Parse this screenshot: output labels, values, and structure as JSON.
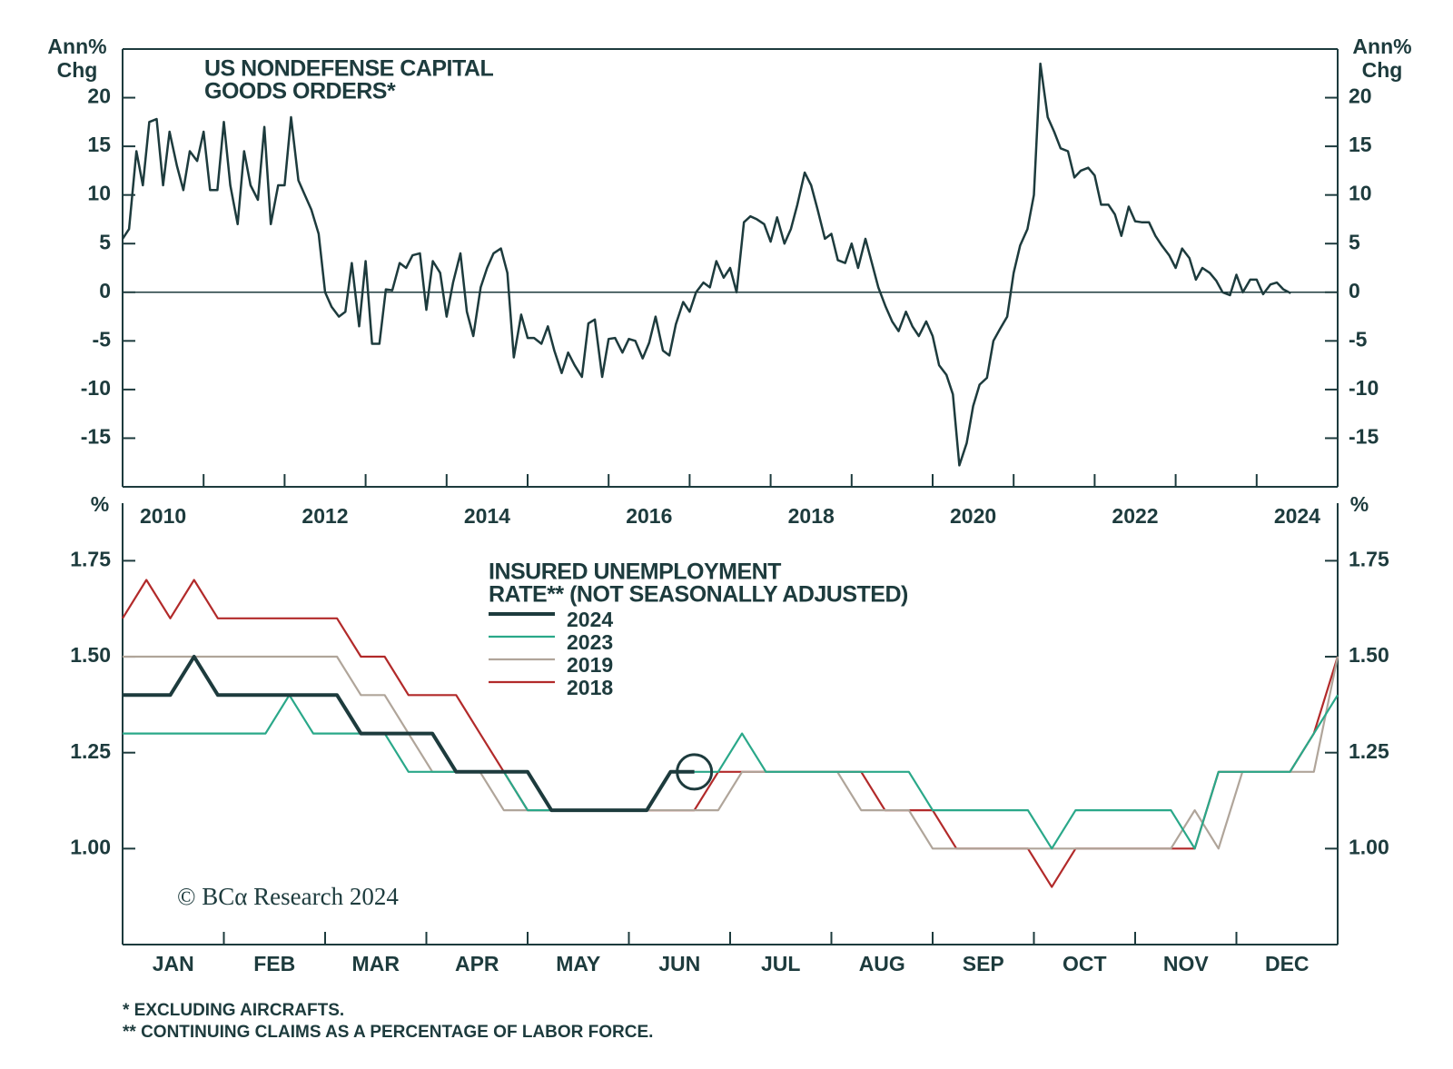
{
  "chart_data": [
    {
      "type": "line",
      "title": [
        "US NONDEFENSE CAPITAL",
        "GOODS ORDERS*"
      ],
      "ylabel": [
        "Ann%",
        "Chg"
      ],
      "xlim": [
        2010,
        2025
      ],
      "xticks": [
        2010,
        2012,
        2014,
        2016,
        2018,
        2020,
        2022,
        2024
      ],
      "xminorticks": [
        2011,
        2012,
        2013,
        2014,
        2015,
        2016,
        2017,
        2018,
        2019,
        2020,
        2021,
        2022,
        2023,
        2024
      ],
      "ylim": [
        -20,
        25
      ],
      "yticks": [
        -15,
        -10,
        -5,
        0,
        5,
        10,
        15,
        20
      ],
      "zero_line": true,
      "x": [
        2010,
        2010.08,
        2010.17,
        2010.25,
        2010.33,
        2010.42,
        2010.5,
        2010.58,
        2010.67,
        2010.75,
        2010.83,
        2010.92,
        2011,
        2011.08,
        2011.17,
        2011.25,
        2011.33,
        2011.42,
        2011.5,
        2011.58,
        2011.67,
        2011.75,
        2011.83,
        2011.92,
        2012,
        2012.08,
        2012.17,
        2012.25,
        2012.33,
        2012.42,
        2012.5,
        2012.58,
        2012.67,
        2012.75,
        2012.83,
        2012.92,
        2013,
        2013.08,
        2013.17,
        2013.25,
        2013.33,
        2013.42,
        2013.5,
        2013.58,
        2013.67,
        2013.75,
        2013.83,
        2013.92,
        2014,
        2014.08,
        2014.17,
        2014.25,
        2014.33,
        2014.42,
        2014.5,
        2014.58,
        2014.67,
        2014.75,
        2014.83,
        2014.92,
        2015,
        2015.08,
        2015.17,
        2015.25,
        2015.33,
        2015.42,
        2015.5,
        2015.58,
        2015.67,
        2015.75,
        2015.83,
        2015.92,
        2016,
        2016.08,
        2016.17,
        2016.25,
        2016.33,
        2016.42,
        2016.5,
        2016.58,
        2016.67,
        2016.75,
        2016.83,
        2016.92,
        2017,
        2017.08,
        2017.17,
        2017.25,
        2017.33,
        2017.42,
        2017.5,
        2017.58,
        2017.67,
        2017.75,
        2017.83,
        2017.92,
        2018,
        2018.08,
        2018.17,
        2018.25,
        2018.33,
        2018.42,
        2018.5,
        2018.58,
        2018.67,
        2018.75,
        2018.83,
        2018.92,
        2019,
        2019.08,
        2019.17,
        2019.25,
        2019.33,
        2019.42,
        2019.5,
        2019.58,
        2019.67,
        2019.75,
        2019.83,
        2019.92,
        2020,
        2020.08,
        2020.17,
        2020.25,
        2020.33,
        2020.42,
        2020.5,
        2020.58,
        2020.67,
        2020.75,
        2020.83,
        2020.92,
        2021,
        2021.08,
        2021.17,
        2021.25,
        2021.33,
        2021.42,
        2021.5,
        2021.58,
        2021.67,
        2021.75,
        2021.83,
        2021.92,
        2022,
        2022.08,
        2022.17,
        2022.25,
        2022.33,
        2022.42,
        2022.5,
        2022.58,
        2022.67,
        2022.75,
        2022.83,
        2022.92,
        2023,
        2023.08,
        2023.17,
        2023.25,
        2023.33,
        2023.42,
        2023.5,
        2023.58,
        2023.67,
        2023.75,
        2023.83,
        2023.92,
        2024,
        2024.08,
        2024.17,
        2024.25,
        2024.33,
        2024.42
      ],
      "series": [
        {
          "color": "#1d3b3d",
          "width": 2.5,
          "values": [
            5.5,
            6.5,
            14.5,
            11,
            17.5,
            17.8,
            11,
            16.5,
            13,
            10.5,
            14.5,
            13.5,
            16.5,
            10.5,
            10.5,
            17.5,
            11,
            7,
            14.5,
            11,
            9.5,
            17,
            7,
            11,
            11,
            18,
            11.5,
            10,
            8.5,
            6,
            0,
            -1.5,
            -2.5,
            -2,
            3,
            -3.5,
            3.2,
            -5.3,
            -5.3,
            0.3,
            0.2,
            3,
            2.5,
            3.8,
            4,
            -1.8,
            3.2,
            2,
            -2.5,
            1,
            4,
            -2,
            -4.5,
            0.5,
            2.5,
            4,
            4.5,
            2,
            -6.7,
            -2.3,
            -4.7,
            -4.7,
            -5.3,
            -3.5,
            -6,
            -8.3,
            -6.2,
            -7.5,
            -8.7,
            -3.2,
            -2.8,
            -8.7,
            -4.8,
            -4.7,
            -6.2,
            -4.8,
            -5,
            -6.8,
            -5.2,
            -2.5,
            -6,
            -6.5,
            -3.3,
            -1,
            -2,
            0,
            1,
            0.5,
            3.2,
            1.5,
            2.5,
            0,
            7.2,
            7.8,
            7.5,
            7,
            5.2,
            7.7,
            5,
            6.5,
            9,
            12.3,
            11,
            8.5,
            5.5,
            6,
            3.3,
            3,
            5,
            2.5,
            5.5,
            3,
            0.5,
            -1.5,
            -3,
            -4,
            -2,
            -3.5,
            -4.5,
            -3,
            -4.5,
            -7.5,
            -8.5,
            -10.5,
            -17.8,
            -15.5,
            -11.7,
            -9.5,
            -8.8,
            -5,
            -3.8,
            -2.5,
            2,
            4.8,
            6.5,
            10,
            23.5,
            18,
            16.5,
            14.8,
            14.5,
            11.8,
            12.5,
            12.8,
            12,
            9,
            9,
            8,
            5.8,
            8.8,
            7.3,
            7.2,
            7.2,
            5.8,
            4.8,
            3.8,
            2.5,
            4.5,
            3.5,
            1.3,
            2.5,
            2,
            1.2,
            0,
            -0.3,
            1.8,
            0,
            1.3,
            1.3,
            -0.2,
            0.8,
            1,
            0.3,
            -0.1
          ]
        }
      ]
    },
    {
      "type": "line",
      "title": [
        "INSURED UNEMPLOYMENT",
        "RATE** (NOT SEASONALLY ADJUSTED)"
      ],
      "ylabel": [
        "%"
      ],
      "source": "© BCα Research 2024",
      "xlim": [
        0,
        51
      ],
      "xticks": [
        {
          "value": 2.125,
          "label": "JAN"
        },
        {
          "value": 6.375,
          "label": "FEB"
        },
        {
          "value": 10.625,
          "label": "MAR"
        },
        {
          "value": 14.875,
          "label": "APR"
        },
        {
          "value": 19.125,
          "label": "MAY"
        },
        {
          "value": 23.375,
          "label": "JUN"
        },
        {
          "value": 27.625,
          "label": "JUL"
        },
        {
          "value": 31.875,
          "label": "AUG"
        },
        {
          "value": 36.125,
          "label": "SEP"
        },
        {
          "value": 40.375,
          "label": "OCT"
        },
        {
          "value": 44.625,
          "label": "NOV"
        },
        {
          "value": 48.875,
          "label": "DEC"
        }
      ],
      "xminorticks": [
        4.25,
        8.5,
        12.75,
        17,
        21.25,
        25.5,
        29.75,
        34,
        38.25,
        42.5,
        46.75
      ],
      "ylim": [
        0.75,
        1.9
      ],
      "yticks": [
        {
          "value": 1,
          "label": "1.00"
        },
        {
          "value": 1.25,
          "label": "1.25"
        },
        {
          "value": 1.5,
          "label": "1.50"
        },
        {
          "value": 1.75,
          "label": "1.75"
        }
      ],
      "x": [
        0,
        1,
        2,
        3,
        4,
        5,
        6,
        7,
        8,
        9,
        10,
        11,
        12,
        13,
        14,
        15,
        16,
        17,
        18,
        19,
        20,
        21,
        22,
        23,
        24,
        25,
        26,
        27,
        28,
        29,
        30,
        31,
        32,
        33,
        34,
        35,
        36,
        37,
        38,
        39,
        40,
        41,
        42,
        43,
        44,
        45,
        46,
        47,
        48,
        49,
        50,
        51
      ],
      "highlight_last": true,
      "series": [
        {
          "name": "2024",
          "color": "#1d3b3d",
          "width": 4,
          "values": [
            1.4,
            1.4,
            1.4,
            1.5,
            1.4,
            1.4,
            1.4,
            1.4,
            1.4,
            1.4,
            1.3,
            1.3,
            1.3,
            1.3,
            1.2,
            1.2,
            1.2,
            1.2,
            1.1,
            1.1,
            1.1,
            1.1,
            1.1,
            1.2,
            1.2,
            null,
            null,
            null,
            null,
            null,
            null,
            null,
            null,
            null,
            null,
            null,
            null,
            null,
            null,
            null,
            null,
            null,
            null,
            null,
            null,
            null,
            null,
            null,
            null,
            null,
            null,
            null
          ]
        },
        {
          "name": "2023",
          "color": "#2aa889",
          "width": 2.2,
          "values": [
            1.3,
            1.3,
            1.3,
            1.3,
            1.3,
            1.3,
            1.3,
            1.4,
            1.3,
            1.3,
            1.3,
            1.3,
            1.2,
            1.2,
            1.2,
            1.2,
            1.2,
            1.1,
            1.1,
            1.1,
            1.1,
            1.1,
            1.1,
            1.2,
            1.2,
            1.2,
            1.3,
            1.2,
            1.2,
            1.2,
            1.2,
            1.2,
            1.2,
            1.2,
            1.1,
            1.1,
            1.1,
            1.1,
            1.1,
            1.0,
            1.1,
            1.1,
            1.1,
            1.1,
            1.1,
            1.0,
            1.2,
            1.2,
            1.2,
            1.2,
            1.3,
            1.4
          ]
        },
        {
          "name": "2019",
          "color": "#b0a59a",
          "width": 2.2,
          "values": [
            1.5,
            1.5,
            1.5,
            1.5,
            1.5,
            1.5,
            1.5,
            1.5,
            1.5,
            1.5,
            1.4,
            1.4,
            1.3,
            1.2,
            1.2,
            1.2,
            1.1,
            1.1,
            1.1,
            1.1,
            1.1,
            1.1,
            1.1,
            1.1,
            1.1,
            1.1,
            1.2,
            1.2,
            1.2,
            1.2,
            1.2,
            1.1,
            1.1,
            1.1,
            1.0,
            1.0,
            1.0,
            1.0,
            1.0,
            1.0,
            1.0,
            1.0,
            1.0,
            1.0,
            1.0,
            1.1,
            1.0,
            1.2,
            1.2,
            1.2,
            1.2,
            1.5
          ]
        },
        {
          "name": "2018",
          "color": "#b22a2a",
          "width": 2.2,
          "values": [
            1.6,
            1.7,
            1.6,
            1.7,
            1.6,
            1.6,
            1.6,
            1.6,
            1.6,
            1.6,
            1.5,
            1.5,
            1.4,
            1.4,
            1.4,
            1.3,
            1.2,
            1.1,
            1.1,
            1.1,
            1.1,
            1.1,
            1.1,
            1.1,
            1.1,
            1.2,
            1.2,
            1.2,
            1.2,
            1.2,
            1.2,
            1.2,
            1.1,
            1.1,
            1.1,
            1.0,
            1.0,
            1.0,
            1.0,
            0.9,
            1.0,
            1.0,
            1.0,
            1.0,
            1.0,
            1.0,
            1.2,
            1.2,
            1.2,
            1.2,
            1.3,
            1.5
          ]
        }
      ]
    }
  ],
  "footnotes": [
    "* EXCLUDING AIRCRAFTS.",
    "** CONTINUING CLAIMS AS A PERCENTAGE OF LABOR FORCE."
  ]
}
